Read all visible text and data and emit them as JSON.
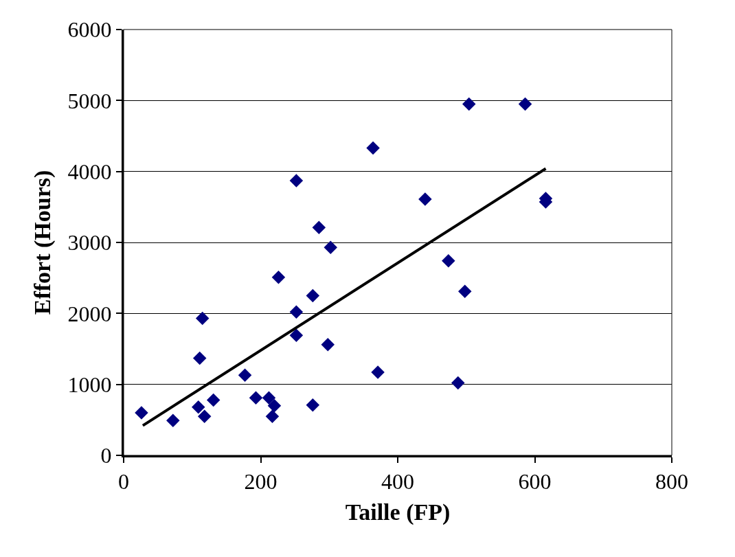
{
  "chart_data": {
    "type": "scatter",
    "xlabel": "Taille (FP)",
    "ylabel": "Effort (Hours)",
    "xlim": [
      0,
      800
    ],
    "xticks": [
      0,
      200,
      400,
      600,
      800
    ],
    "ylim": [
      0,
      6000
    ],
    "yticks": [
      0,
      1000,
      2000,
      3000,
      4000,
      5000,
      6000
    ],
    "grid": "y",
    "series": [
      {
        "marker": "diamond",
        "color": "#000080",
        "x": [
          26,
          72,
          109,
          118,
          131,
          111,
          115,
          177,
          193,
          212,
          220,
          217,
          226,
          252,
          252,
          252,
          276,
          276,
          285,
          302,
          298,
          364,
          371,
          440,
          474,
          498,
          488,
          504,
          586,
          616,
          616
        ],
        "values": [
          600,
          490,
          680,
          550,
          780,
          1370,
          1930,
          1130,
          810,
          810,
          700,
          550,
          2510,
          3870,
          2020,
          1690,
          2250,
          710,
          3210,
          2930,
          1560,
          4330,
          1170,
          3610,
          2740,
          2310,
          1020,
          4950,
          4950,
          3620,
          3570
        ]
      },
      {
        "type": "line",
        "marker": "none",
        "color": "#000000",
        "x": [
          28,
          616
        ],
        "values": [
          420,
          4040
        ]
      }
    ]
  }
}
